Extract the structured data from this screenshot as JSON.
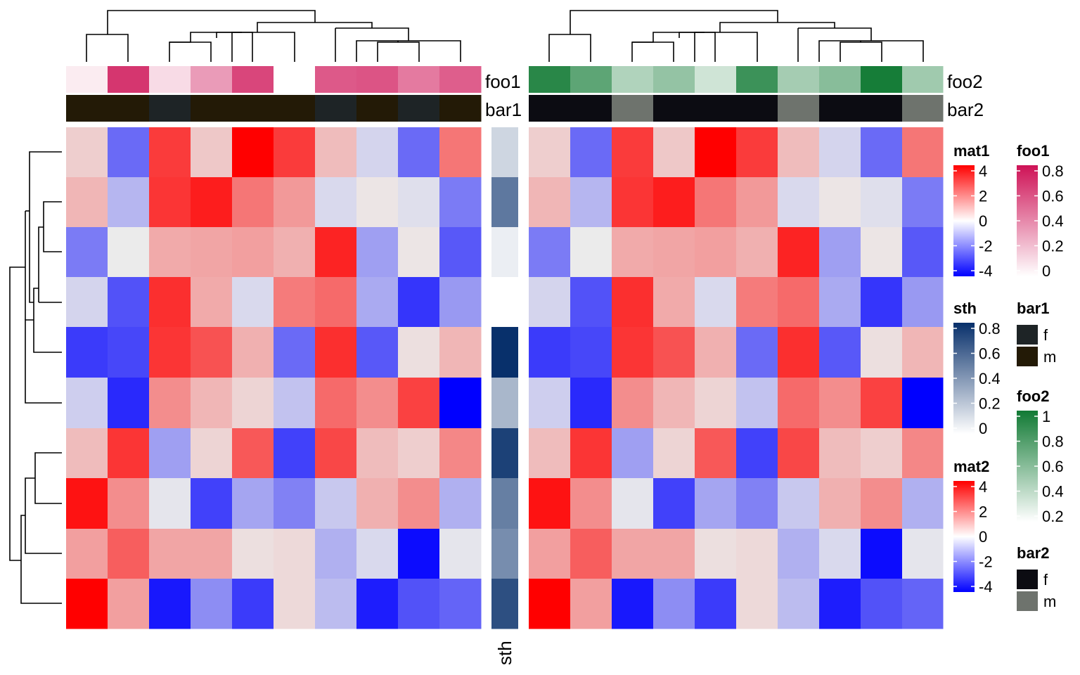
{
  "chart_data": {
    "type": "heatmap",
    "n_rows": 10,
    "n_cols": 10,
    "mat1": {
      "values": [
        [
          0.5,
          -2.2,
          3.0,
          0.6,
          4.2,
          3.0,
          0.8,
          -0.4,
          -2.2,
          2.0
        ],
        [
          0.9,
          -0.9,
          3.1,
          3.5,
          2.0,
          1.4,
          -0.3,
          0.1,
          -0.2,
          -1.9
        ],
        [
          -1.9,
          0.0,
          1.1,
          1.2,
          1.3,
          1.0,
          3.4,
          -1.3,
          0.1,
          -2.5
        ],
        [
          -0.4,
          -2.6,
          3.2,
          1.1,
          -0.3,
          1.9,
          2.2,
          -1.1,
          -3.1,
          -1.4
        ],
        [
          -3.0,
          -2.8,
          3.1,
          2.6,
          1.0,
          -2.2,
          3.2,
          -2.5,
          0.2,
          0.9
        ],
        [
          -0.5,
          -3.3,
          1.6,
          0.9,
          0.4,
          -0.7,
          2.2,
          1.6,
          2.9,
          -4.2
        ],
        [
          0.8,
          3.1,
          -1.3,
          0.4,
          2.5,
          -2.9,
          2.8,
          0.8,
          0.5,
          1.7
        ],
        [
          3.7,
          1.6,
          -0.1,
          -2.9,
          -1.2,
          -1.8,
          -0.6,
          1.0,
          1.6,
          -1.0
        ],
        [
          1.3,
          2.4,
          1.2,
          1.2,
          0.2,
          0.3,
          -1.0,
          -0.3,
          -3.8,
          -0.1
        ],
        [
          4.2,
          1.3,
          -3.6,
          -1.6,
          -3.0,
          0.3,
          -0.8,
          -3.5,
          -2.6,
          -2.3
        ]
      ]
    },
    "mat2": {
      "values": [
        [
          0.5,
          -2.2,
          3.0,
          0.6,
          4.2,
          3.0,
          0.8,
          -0.4,
          -2.2,
          2.0
        ],
        [
          0.9,
          -0.9,
          3.1,
          3.5,
          2.0,
          1.4,
          -0.3,
          0.1,
          -0.2,
          -1.9
        ],
        [
          -1.9,
          0.0,
          1.1,
          1.2,
          1.3,
          1.0,
          3.4,
          -1.3,
          0.1,
          -2.5
        ],
        [
          -0.4,
          -2.6,
          3.2,
          1.1,
          -0.3,
          1.9,
          2.2,
          -1.1,
          -3.1,
          -1.4
        ],
        [
          -3.0,
          -2.8,
          3.1,
          2.6,
          1.0,
          -2.2,
          3.2,
          -2.5,
          0.2,
          0.9
        ],
        [
          -0.5,
          -3.3,
          1.6,
          0.9,
          0.4,
          -0.7,
          2.2,
          1.6,
          2.9,
          -4.2
        ],
        [
          0.8,
          3.1,
          -1.3,
          0.4,
          2.5,
          -2.9,
          2.8,
          0.8,
          0.5,
          1.7
        ],
        [
          3.7,
          1.6,
          -0.1,
          -2.9,
          -1.2,
          -1.8,
          -0.6,
          1.0,
          1.6,
          -1.0
        ],
        [
          1.3,
          2.4,
          1.2,
          1.2,
          0.2,
          0.3,
          -1.0,
          -0.3,
          -3.8,
          -0.1
        ],
        [
          4.2,
          1.3,
          -3.6,
          -1.6,
          -3.0,
          0.3,
          -0.8,
          -3.5,
          -2.6,
          -2.3
        ]
      ]
    },
    "sth": {
      "label": "sth",
      "values": [
        0.2,
        0.65,
        0.08,
        0.0,
        1.0,
        0.35,
        0.92,
        0.62,
        0.55,
        0.85
      ]
    },
    "annotations": {
      "foo1": {
        "label": "foo1",
        "values": [
          0.08,
          0.85,
          0.15,
          0.42,
          0.78,
          0.0,
          0.7,
          0.72,
          0.56,
          0.68
        ]
      },
      "bar1": {
        "label": "bar1",
        "values": [
          "m",
          "m",
          "f",
          "m",
          "m",
          "m",
          "f",
          "m",
          "f",
          "m"
        ]
      },
      "foo2": {
        "label": "foo2",
        "values": [
          0.9,
          0.68,
          0.33,
          0.45,
          0.2,
          0.82,
          0.38,
          0.5,
          0.98,
          0.4
        ]
      },
      "bar2": {
        "label": "bar2",
        "values": [
          "f",
          "f",
          "m",
          "f",
          "f",
          "f",
          "m",
          "f",
          "f",
          "m"
        ]
      }
    },
    "legends": [
      {
        "key": "mat1",
        "title": "mat1",
        "kind": "continuous",
        "ticks": [
          "4",
          "2",
          "0",
          "-2",
          "-4"
        ],
        "colors": [
          "#ff0000",
          "#ffffff",
          "#0000ff"
        ]
      },
      {
        "key": "sth",
        "title": "sth",
        "kind": "continuous",
        "ticks": [
          "0.8",
          "0.6",
          "0.4",
          "0.2",
          "0"
        ],
        "colors": [
          "#08306b",
          "#ffffff"
        ]
      },
      {
        "key": "mat2",
        "title": "mat2",
        "kind": "continuous",
        "ticks": [
          "4",
          "2",
          "0",
          "-2",
          "-4"
        ],
        "colors": [
          "#ff0000",
          "#ffffff",
          "#0000ff"
        ]
      },
      {
        "key": "foo1",
        "title": "foo1",
        "kind": "continuous",
        "ticks": [
          "0.8",
          "0.6",
          "0.4",
          "0.2",
          "0"
        ],
        "colors": [
          "#ce1256",
          "#ffffff"
        ]
      },
      {
        "key": "bar1",
        "title": "bar1",
        "kind": "discrete",
        "levels": [
          {
            "label": "f",
            "color": "#1e2426"
          },
          {
            "label": "m",
            "color": "#231a06"
          }
        ]
      },
      {
        "key": "foo2",
        "title": "foo2",
        "kind": "continuous",
        "ticks": [
          "1",
          "0.8",
          "0.6",
          "0.4",
          "0.2"
        ],
        "colors": [
          "#117a34",
          "#ffffff"
        ]
      },
      {
        "key": "bar2",
        "title": "bar2",
        "kind": "discrete",
        "levels": [
          {
            "label": "f",
            "color": "#0c0c12"
          },
          {
            "label": "m",
            "color": "#6e736d"
          }
        ]
      }
    ],
    "colors": {
      "high": "#ff0000",
      "mid": "#ffffff",
      "low": "#0000ff",
      "mid_gray": "#ebebeb",
      "sth_high": "#08306b",
      "foo1_high": "#ce1256",
      "foo2_high": "#117a34",
      "dendrogram": "#000000"
    }
  }
}
